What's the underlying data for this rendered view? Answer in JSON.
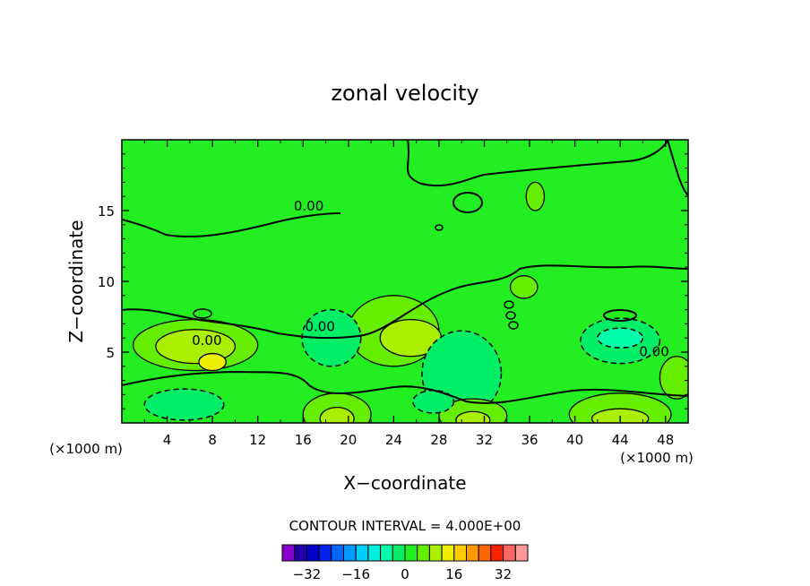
{
  "chart_data": {
    "type": "heatmap",
    "title": "zonal velocity",
    "xlabel": "X−coordinate",
    "ylabel": "Z−coordinate",
    "x_unit": "(×1000 m)",
    "z_unit": "(×1000 m)",
    "xlim": [
      0,
      50
    ],
    "ylim": [
      0,
      20
    ],
    "x_ticks": [
      4,
      8,
      12,
      16,
      20,
      24,
      28,
      32,
      36,
      40,
      44,
      48
    ],
    "y_ticks": [
      5,
      10,
      15
    ],
    "x_tick_labels": [
      "4",
      "8",
      "12",
      "16",
      "20",
      "24",
      "28",
      "32",
      "36",
      "40",
      "44",
      "48"
    ],
    "y_tick_labels": [
      "5",
      "10",
      "15"
    ],
    "background_value_color": "#22ee22",
    "contour_labels": [
      {
        "text": "0.00",
        "x": 16.5,
        "y": 15.0
      },
      {
        "text": "0.00",
        "x": 17.5,
        "y": 6.5
      },
      {
        "text": "0.00",
        "x": 7.5,
        "y": 5.5
      },
      {
        "text": "0.00",
        "x": 47.0,
        "y": 4.7
      }
    ],
    "regions": [
      {
        "kind": "positive",
        "level": 4,
        "center": [
          6.5,
          5.5
        ],
        "extent": [
          5.5,
          1.8
        ]
      },
      {
        "kind": "positive",
        "level": 8,
        "center": [
          6.5,
          5.4
        ],
        "extent": [
          3.5,
          1.2
        ]
      },
      {
        "kind": "positive",
        "level": 12,
        "center": [
          8,
          4.3
        ],
        "extent": [
          1.2,
          0.6
        ]
      },
      {
        "kind": "positive",
        "level": 4,
        "center": [
          24,
          6.5
        ],
        "extent": [
          4.0,
          2.5
        ]
      },
      {
        "kind": "positive",
        "level": 8,
        "center": [
          25.5,
          6.0
        ],
        "extent": [
          2.7,
          1.3
        ]
      },
      {
        "kind": "negative",
        "level": -4,
        "center": [
          18.5,
          6.0
        ],
        "extent": [
          2.6,
          2.0
        ]
      },
      {
        "kind": "negative",
        "level": -4,
        "center": [
          44,
          5.8
        ],
        "extent": [
          3.5,
          1.6
        ]
      },
      {
        "kind": "negative",
        "level": -8,
        "center": [
          44,
          6.0
        ],
        "extent": [
          2.0,
          0.7
        ]
      },
      {
        "kind": "negative",
        "level": -4,
        "center": [
          30,
          3.5
        ],
        "extent": [
          3.5,
          3.0
        ]
      },
      {
        "kind": "positive",
        "level": 4,
        "center": [
          19,
          0.6
        ],
        "extent": [
          3.0,
          1.5
        ]
      },
      {
        "kind": "positive",
        "level": 8,
        "center": [
          19,
          0.3
        ],
        "extent": [
          1.5,
          0.8
        ]
      },
      {
        "kind": "positive",
        "level": 4,
        "center": [
          31,
          0.5
        ],
        "extent": [
          3.0,
          1.2
        ]
      },
      {
        "kind": "positive",
        "level": 8,
        "center": [
          31,
          0.2
        ],
        "extent": [
          1.5,
          0.6
        ]
      },
      {
        "kind": "positive",
        "level": 4,
        "center": [
          44,
          0.6
        ],
        "extent": [
          4.5,
          1.5
        ]
      },
      {
        "kind": "positive",
        "level": 8,
        "center": [
          44,
          0.3
        ],
        "extent": [
          2.5,
          0.7
        ]
      },
      {
        "kind": "negative",
        "level": -4,
        "center": [
          5.5,
          1.3
        ],
        "extent": [
          3.5,
          1.1
        ]
      },
      {
        "kind": "negative",
        "level": -4,
        "center": [
          27.5,
          1.5
        ],
        "extent": [
          1.8,
          0.8
        ]
      },
      {
        "kind": "positive",
        "level": 4,
        "center": [
          49,
          3.2
        ],
        "extent": [
          1.5,
          1.5
        ]
      },
      {
        "kind": "positive",
        "level": 4,
        "center": [
          36.5,
          16.0
        ],
        "extent": [
          0.8,
          1.0
        ]
      },
      {
        "kind": "positive",
        "level": 4,
        "center": [
          35.5,
          9.6
        ],
        "extent": [
          1.2,
          0.8
        ]
      }
    ],
    "colorbar": {
      "title": "CONTOUR INTERVAL = 4.000E+00",
      "tick_labels": [
        "−32",
        "−16",
        "0",
        "16",
        "32"
      ],
      "tick_values": [
        -32,
        -16,
        0,
        16,
        32
      ],
      "levels": [
        -36,
        -32,
        -28,
        -24,
        -20,
        -16,
        -12,
        -8,
        -4,
        0,
        4,
        8,
        12,
        16,
        20,
        24,
        28,
        32,
        36
      ],
      "colors": [
        "#8800cc",
        "#2200aa",
        "#0000cc",
        "#0022ee",
        "#0066ff",
        "#0099ff",
        "#00ccff",
        "#00eedd",
        "#00ffaa",
        "#00ee66",
        "#22ee22",
        "#66ee00",
        "#aaee00",
        "#eeee00",
        "#ffcc00",
        "#ff9900",
        "#ff6600",
        "#ff2200",
        "#ff6666",
        "#ff9999"
      ]
    }
  }
}
